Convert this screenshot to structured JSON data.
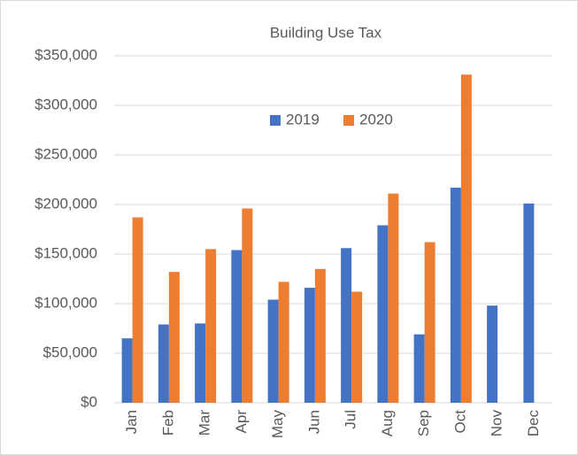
{
  "chart_data": {
    "type": "bar",
    "title": "Building Use Tax",
    "categories": [
      "Jan",
      "Feb",
      "Mar",
      "Apr",
      "May",
      "Jun",
      "Jul",
      "Aug",
      "Sep",
      "Oct",
      "Nov",
      "Dec"
    ],
    "series": [
      {
        "name": "2019",
        "color": "#4472c4",
        "values": [
          65000,
          79000,
          80000,
          154000,
          104000,
          116000,
          156000,
          179000,
          69000,
          217000,
          98000,
          201000
        ]
      },
      {
        "name": "2020",
        "color": "#ed7d31",
        "values": [
          187000,
          132000,
          155000,
          196000,
          122000,
          135000,
          112000,
          211000,
          162000,
          331000,
          null,
          null
        ]
      }
    ],
    "ylim": [
      0,
      350000
    ],
    "yticks": [
      {
        "value": 0,
        "label": "$0"
      },
      {
        "value": 50000,
        "label": "$50,000"
      },
      {
        "value": 100000,
        "label": "$100,000"
      },
      {
        "value": 150000,
        "label": "$150,000"
      },
      {
        "value": 200000,
        "label": "$200,000"
      },
      {
        "value": 250000,
        "label": "$250,000"
      },
      {
        "value": 300000,
        "label": "$300,000"
      },
      {
        "value": 350000,
        "label": "$350,000"
      }
    ],
    "grid": true,
    "legend": "top"
  }
}
